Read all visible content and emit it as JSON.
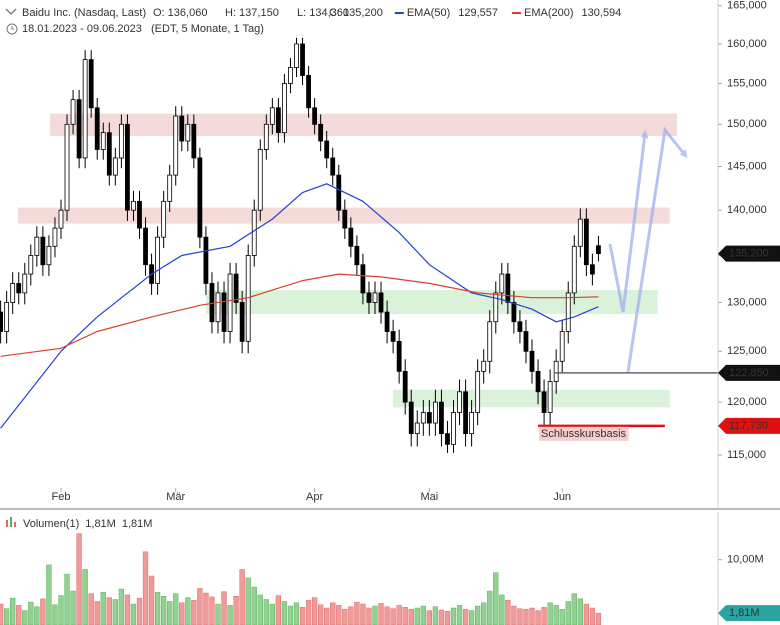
{
  "chart_data": {
    "type": "candlestick",
    "title": "Baidu Inc. (Nasdaq, Last)",
    "ohlc_labels": [
      "O: 136,060",
      "H: 137,150",
      "L: 134,360",
      "C: 135,200"
    ],
    "subtitle": "18.01.2023 - 09.06.2023",
    "subtitle_note": "(EDT, 5 Monate, 1 Tag)",
    "log_scale": true,
    "xlim": [
      -0.1,
      118.8
    ],
    "ylim": [
      112000,
      165750
    ],
    "yticks": [
      {
        "value": 115000,
        "label": "115,000"
      },
      {
        "value": 120000,
        "label": "120,000"
      },
      {
        "value": 125000,
        "label": "125,000"
      },
      {
        "value": 130000,
        "label": "130,000"
      },
      {
        "value": 135000,
        "label": "135,000"
      },
      {
        "value": 140000,
        "label": "140,000"
      },
      {
        "value": 145000,
        "label": "145,000"
      },
      {
        "value": 150000,
        "label": "150,000"
      },
      {
        "value": 155000,
        "label": "155,000"
      },
      {
        "value": 160000,
        "label": "160,000"
      },
      {
        "value": 165000,
        "label": "165,000"
      }
    ],
    "xticks": [
      {
        "value": 10,
        "label": "Feb"
      },
      {
        "value": 29,
        "label": "Mär"
      },
      {
        "value": 52,
        "label": "Apr"
      },
      {
        "value": 71,
        "label": "Mai"
      },
      {
        "value": 93,
        "label": "Jun"
      }
    ],
    "up_color": "#ffffff",
    "down_color": "#000000",
    "open": [
      129000,
      127000,
      130000,
      132000,
      131000,
      133000,
      135000,
      137000,
      134000,
      136000,
      138000,
      140000,
      150000,
      153000,
      146000,
      158000,
      152000,
      147000,
      149000,
      144000,
      146000,
      150000,
      140000,
      141000,
      138000,
      134000,
      132000,
      137000,
      141000,
      144000,
      151000,
      148000,
      150000,
      146000,
      137000,
      132000,
      128000,
      131000,
      127000,
      133000,
      130000,
      126000,
      135000,
      140000,
      147000,
      150000,
      152000,
      149000,
      155000,
      157000,
      160000,
      156000,
      152000,
      150000,
      148000,
      146000,
      144000,
      140000,
      138000,
      136000,
      134000,
      131000,
      130000,
      131000,
      129000,
      127000,
      126000,
      123000,
      120000,
      117000,
      118000,
      119000,
      118000,
      120000,
      117000,
      116000,
      119000,
      121000,
      117000,
      119000,
      123000,
      124000,
      128000,
      131000,
      133000,
      130000,
      128000,
      127000,
      125000,
      123000,
      121000,
      119000,
      122000,
      124000,
      127000,
      131000,
      136000,
      139000,
      134000,
      136060
    ],
    "high": [
      130200,
      131200,
      133200,
      133200,
      134200,
      136200,
      138200,
      138200,
      137200,
      139200,
      141200,
      151200,
      154200,
      154200,
      159200,
      159200,
      153200,
      150200,
      150200,
      147200,
      151200,
      151200,
      142200,
      142200,
      139200,
      135200,
      138200,
      142200,
      145200,
      152200,
      152200,
      151200,
      151200,
      147200,
      138200,
      133200,
      132200,
      132200,
      134200,
      134200,
      131200,
      136200,
      141200,
      148200,
      151200,
      153200,
      153200,
      156200,
      158200,
      161200,
      161200,
      157200,
      153200,
      151200,
      149200,
      147200,
      145200,
      141200,
      139200,
      137200,
      135200,
      132200,
      132200,
      132200,
      130200,
      128200,
      127200,
      124200,
      121200,
      119200,
      120200,
      120200,
      121200,
      121200,
      118200,
      120200,
      122200,
      122200,
      120200,
      124200,
      125200,
      129200,
      132200,
      134200,
      134200,
      131200,
      129200,
      128200,
      126200,
      124200,
      122200,
      123200,
      125200,
      128200,
      132200,
      137200,
      140200,
      140200,
      135200,
      137150
    ],
    "low": [
      125800,
      125800,
      128800,
      129800,
      129800,
      131800,
      133800,
      132800,
      132800,
      134800,
      136800,
      138800,
      148800,
      144800,
      144800,
      150800,
      145800,
      145800,
      142800,
      142800,
      144800,
      138800,
      138800,
      136800,
      132800,
      130800,
      130800,
      135800,
      139800,
      142800,
      146800,
      146800,
      144800,
      135800,
      130800,
      126800,
      126800,
      125800,
      125800,
      128800,
      124800,
      124800,
      133800,
      138800,
      145800,
      148800,
      147800,
      147800,
      153800,
      155800,
      154800,
      150800,
      148800,
      146800,
      144800,
      142800,
      138800,
      136800,
      134800,
      132800,
      129800,
      128800,
      128800,
      127800,
      125800,
      124800,
      121800,
      118800,
      115800,
      115800,
      116800,
      116800,
      116800,
      115800,
      115200,
      115200,
      117800,
      115800,
      115800,
      117800,
      121800,
      122800,
      126800,
      129800,
      128800,
      126800,
      125800,
      123800,
      121800,
      119800,
      117800,
      117800,
      120800,
      122800,
      125800,
      129800,
      134800,
      132800,
      131800,
      134360
    ],
    "close": [
      127000,
      130000,
      132000,
      131000,
      133000,
      135000,
      137000,
      134000,
      136000,
      138000,
      140000,
      150000,
      153000,
      146000,
      158000,
      152000,
      147000,
      149000,
      144000,
      146000,
      150000,
      140000,
      141000,
      138000,
      134000,
      132000,
      137000,
      141000,
      144000,
      151000,
      148000,
      150000,
      146000,
      137000,
      132000,
      128000,
      131000,
      127000,
      133000,
      130000,
      126000,
      135000,
      140000,
      147000,
      150000,
      152000,
      149000,
      155000,
      157000,
      160000,
      156000,
      152000,
      150000,
      148000,
      146000,
      144000,
      140000,
      138000,
      136000,
      134000,
      131000,
      130000,
      131000,
      129000,
      127000,
      126000,
      123000,
      120000,
      117000,
      118000,
      119000,
      118000,
      120000,
      117000,
      116000,
      119000,
      121000,
      117000,
      119000,
      123000,
      124000,
      128000,
      131000,
      133000,
      130000,
      128000,
      127000,
      125000,
      123000,
      121000,
      119000,
      122000,
      124000,
      127000,
      131000,
      136000,
      139000,
      134000,
      133000,
      135200
    ],
    "last_price_label": "135,200",
    "overlays": [
      {
        "name": "EMA(50)",
        "color": "#2540d8",
        "value_label": "129,557",
        "x": [
          0,
          10,
          16,
          25,
          30,
          38,
          45,
          50,
          54,
          60,
          66,
          71,
          78,
          83,
          88,
          92,
          95,
          99
        ],
        "values": [
          117500,
          125000,
          128500,
          133000,
          135000,
          136000,
          139000,
          142000,
          143000,
          141000,
          137500,
          134000,
          131000,
          130300,
          129300,
          128000,
          128500,
          129557
        ]
      },
      {
        "name": "EMA(200)",
        "color": "#d9402e",
        "value_label": "130,594",
        "x": [
          0,
          10,
          16,
          25,
          33,
          41,
          50,
          56,
          63,
          71,
          79,
          88,
          94,
          99
        ],
        "values": [
          124500,
          125300,
          127000,
          128500,
          129700,
          130500,
          132300,
          133000,
          132700,
          132000,
          131000,
          130500,
          130500,
          130594
        ]
      }
    ],
    "zones": [
      {
        "color": "#f3d3d3",
        "y": [
          148600,
          151300
        ],
        "x": [
          8.2,
          112
        ]
      },
      {
        "color": "#f3d3d3",
        "y": [
          138500,
          140300
        ],
        "x": [
          2.9,
          110.8
        ]
      },
      {
        "color": "#d3efd3",
        "y": [
          128800,
          131300
        ],
        "x": [
          34,
          108.8
        ]
      },
      {
        "color": "#d3efd3",
        "y": [
          119500,
          121200
        ],
        "x": [
          65,
          110.8
        ]
      }
    ],
    "levels": [
      {
        "value": 122850,
        "label": "122,850",
        "color": "#666666",
        "box_color": "#111111",
        "x": [
          91.8,
          129.1
        ]
      },
      {
        "value": 117730,
        "label": "117,730",
        "color": "#e01010",
        "box_color": "#e01010",
        "x": [
          89,
          110
        ]
      }
    ],
    "annotation": "Schlusskursbasis",
    "volume": {
      "name": "Volumen(1)",
      "legend_values": [
        "1,81M",
        "1,81M"
      ],
      "last_label": "1,81M",
      "ylim": [
        0,
        17.3
      ],
      "yticks": [
        {
          "value": 10,
          "label": "10,00M"
        }
      ],
      "up_color": "#93d193",
      "down_color": "#f09a9a",
      "values": [
        3.2,
        2.5,
        4.1,
        3.0,
        2.2,
        3.5,
        2.8,
        4.0,
        9.2,
        3.1,
        4.5,
        7.8,
        5.2,
        14.0,
        8.5,
        4.8,
        3.6,
        5.0,
        4.2,
        3.9,
        5.5,
        4.6,
        3.2,
        4.1,
        11.2,
        7.5,
        5.0,
        4.4,
        3.6,
        4.8,
        3.4,
        4.2,
        3.8,
        5.6,
        4.9,
        4.3,
        3.2,
        5.1,
        3.0,
        4.4,
        8.5,
        7.2,
        5.8,
        4.6,
        3.9,
        3.2,
        4.5,
        3.6,
        2.9,
        3.4,
        2.7,
        3.8,
        4.2,
        3.1,
        2.6,
        3.4,
        3.0,
        2.4,
        2.8,
        3.5,
        3.2,
        2.6,
        2.9,
        3.3,
        2.8,
        2.5,
        3.0,
        2.7,
        2.4,
        2.6,
        2.9,
        2.2,
        2.8,
        2.3,
        2.1,
        2.6,
        3.0,
        2.4,
        2.2,
        2.9,
        3.4,
        5.2,
        8.0,
        4.6,
        3.8,
        2.9,
        2.5,
        2.4,
        2.6,
        2.2,
        2.7,
        3.4,
        3.0,
        2.4,
        3.6,
        4.8,
        4.0,
        3.2,
        2.6,
        1.81
      ]
    }
  }
}
